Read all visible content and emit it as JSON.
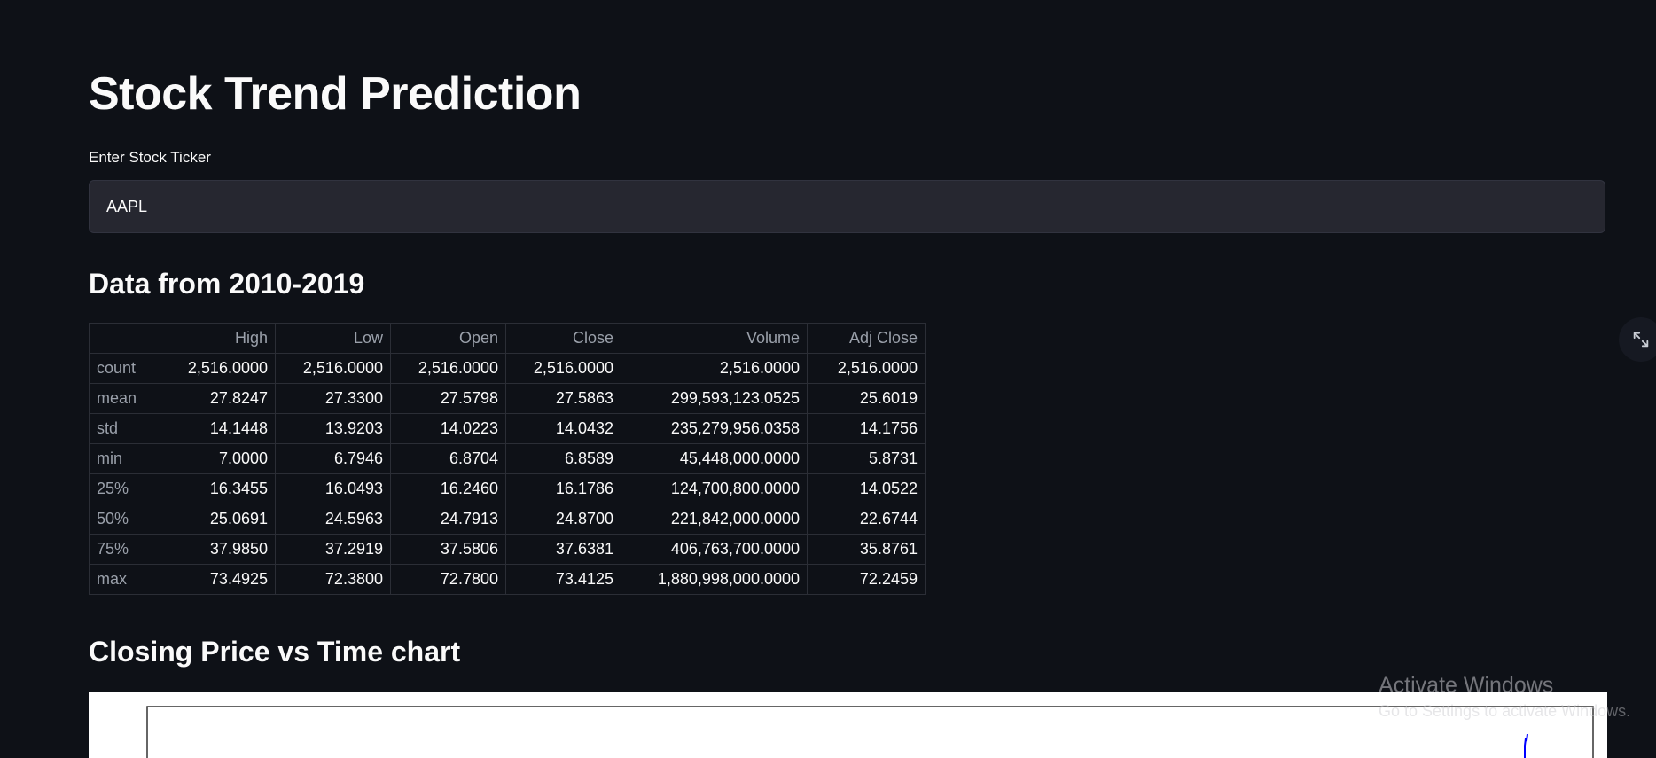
{
  "app": {
    "title": "Stock Trend Prediction",
    "input_label": "Enter Stock Ticker",
    "ticker_value": "AAPL"
  },
  "sections": {
    "data_heading": "Data from 2010-2019",
    "chart_heading": "Closing Price vs Time chart"
  },
  "table": {
    "columns": [
      "",
      "High",
      "Low",
      "Open",
      "Close",
      "Volume",
      "Adj Close"
    ],
    "rows": [
      {
        "label": "count",
        "values": [
          "2,516.0000",
          "2,516.0000",
          "2,516.0000",
          "2,516.0000",
          "2,516.0000",
          "2,516.0000"
        ]
      },
      {
        "label": "mean",
        "values": [
          "27.8247",
          "27.3300",
          "27.5798",
          "27.5863",
          "299,593,123.0525",
          "25.6019"
        ]
      },
      {
        "label": "std",
        "values": [
          "14.1448",
          "13.9203",
          "14.0223",
          "14.0432",
          "235,279,956.0358",
          "14.1756"
        ]
      },
      {
        "label": "min",
        "values": [
          "7.0000",
          "6.7946",
          "6.8704",
          "6.8589",
          "45,448,000.0000",
          "5.8731"
        ]
      },
      {
        "label": "25%",
        "values": [
          "16.3455",
          "16.0493",
          "16.2460",
          "16.1786",
          "124,700,800.0000",
          "14.0522"
        ]
      },
      {
        "label": "50%",
        "values": [
          "25.0691",
          "24.5963",
          "24.7913",
          "24.8700",
          "221,842,000.0000",
          "22.6744"
        ]
      },
      {
        "label": "75%",
        "values": [
          "37.9850",
          "37.2919",
          "37.5806",
          "37.6381",
          "406,763,700.0000",
          "35.8761"
        ]
      },
      {
        "label": "max",
        "values": [
          "73.4925",
          "72.3800",
          "72.7800",
          "73.4125",
          "1,880,998,000.0000",
          "72.2459"
        ]
      }
    ]
  },
  "icons": {
    "fullscreen": "expand-icon"
  },
  "watermark": {
    "title": "Activate Windows",
    "subtitle": "Go to Settings to activate Windows."
  },
  "colors": {
    "background": "#0e1117",
    "input_bg": "#262730",
    "line": "#0000ff"
  }
}
